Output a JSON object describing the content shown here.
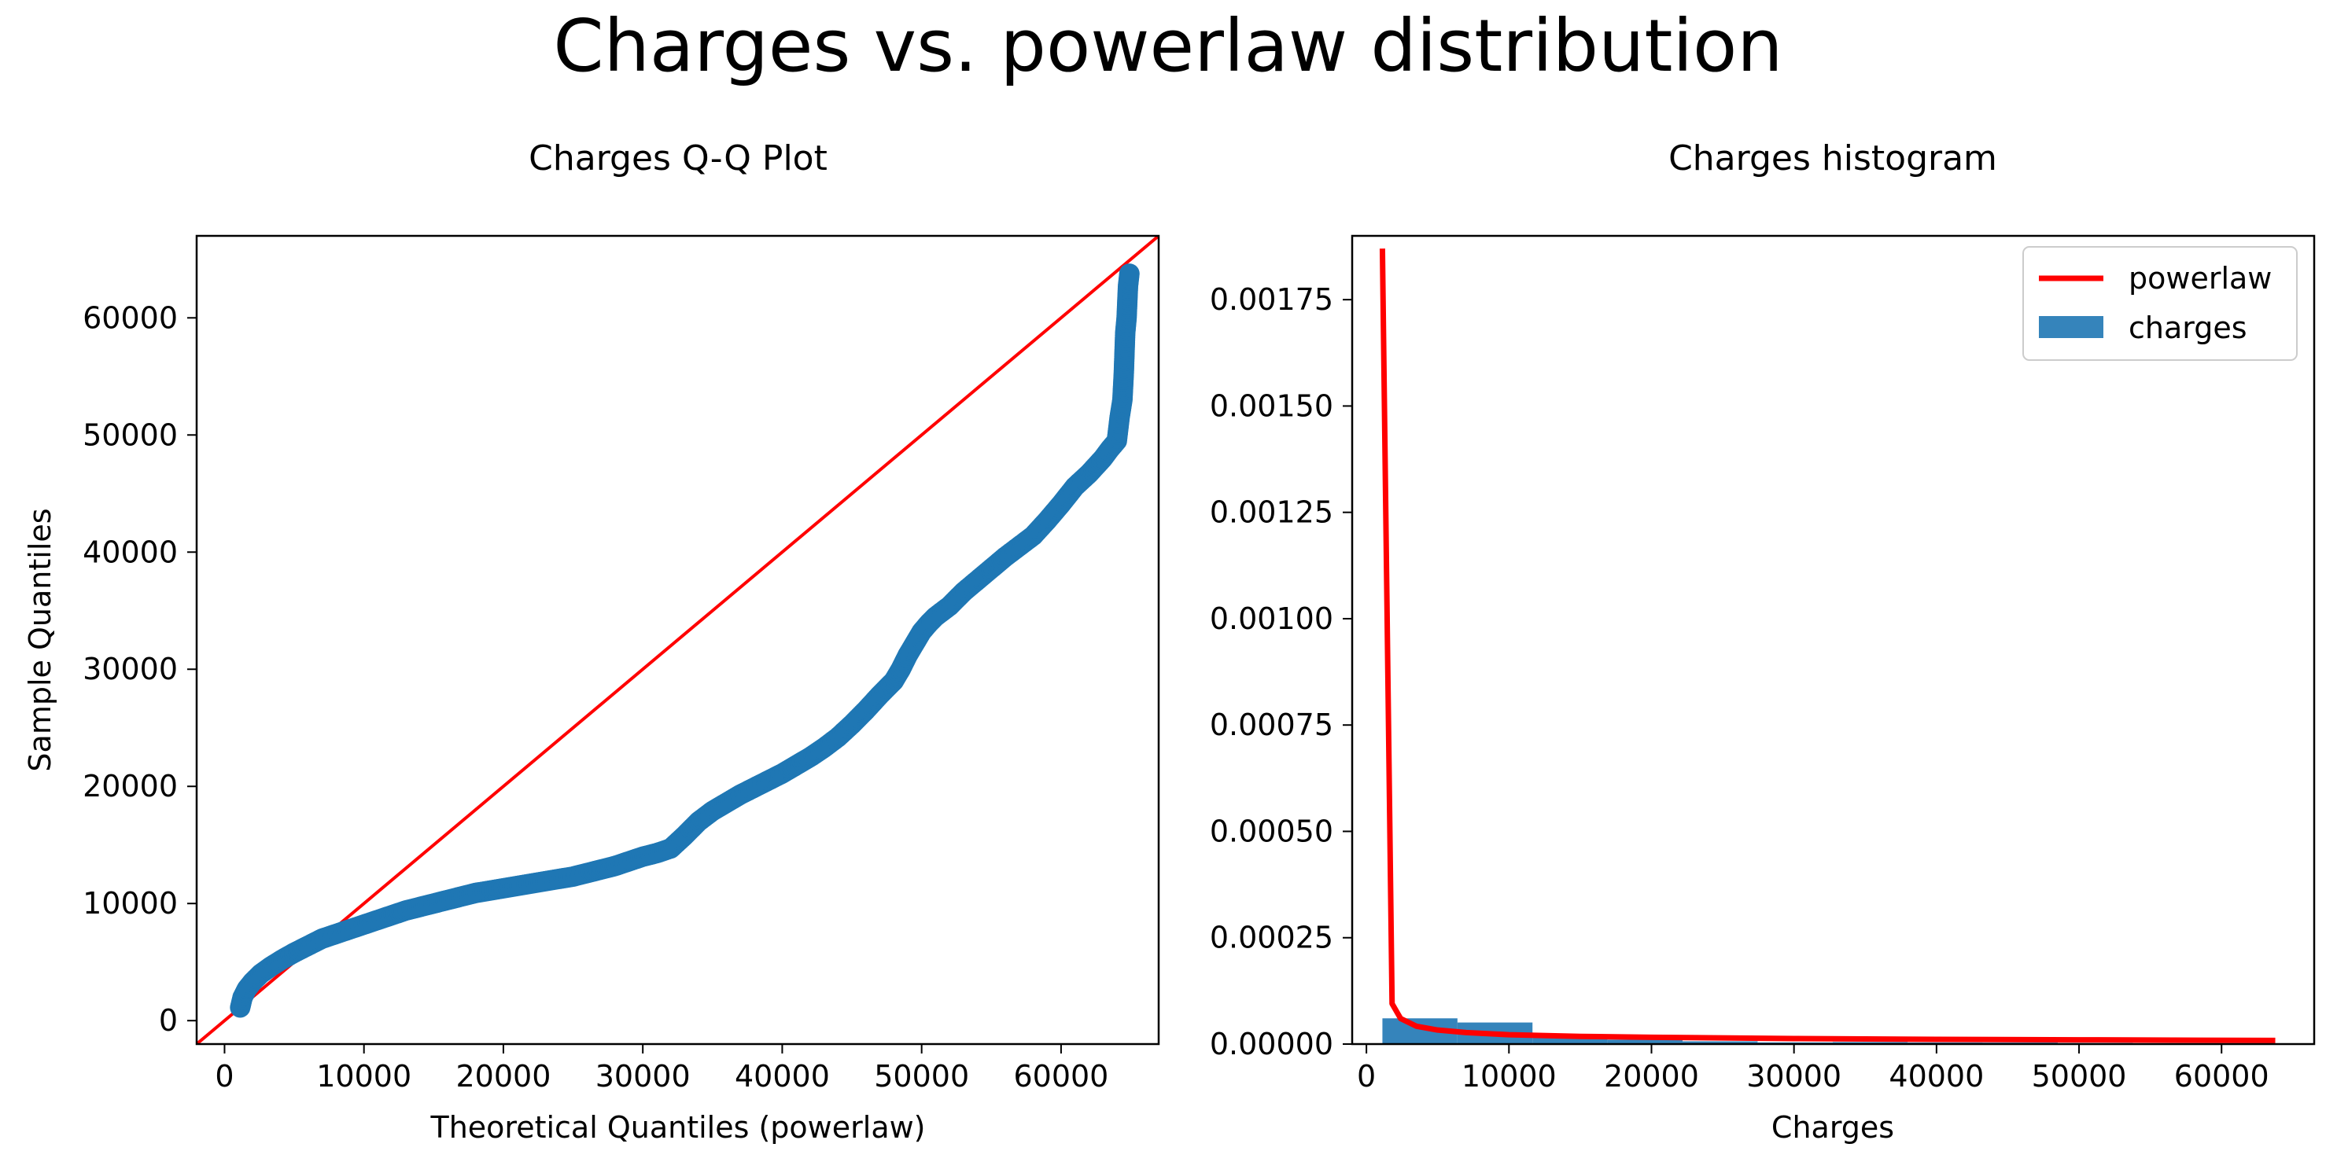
{
  "figure": {
    "suptitle": "Charges vs. powerlaw distribution"
  },
  "chart_data": [
    {
      "type": "scatter",
      "title": "Charges Q-Q Plot",
      "xlabel": "Theoretical Quantiles (powerlaw)",
      "ylabel": "Sample Quantiles",
      "xlim": [
        -2000,
        67000
      ],
      "ylim": [
        -2000,
        67000
      ],
      "xticks": [
        0,
        10000,
        20000,
        30000,
        40000,
        50000,
        60000
      ],
      "yticks": [
        0,
        10000,
        20000,
        30000,
        40000,
        50000,
        60000
      ],
      "grid": false,
      "colors": {
        "points": "#1f77b4",
        "reference_line": "#ff0000"
      },
      "reference_line": [
        [
          -2000,
          -2000
        ],
        [
          67000,
          67000
        ]
      ],
      "points_x": [
        1122,
        1300,
        1600,
        2000,
        2600,
        3300,
        4100,
        5000,
        6000,
        7000,
        8000,
        9000,
        10000,
        11000,
        12000,
        13000,
        14000,
        15000,
        16000,
        17000,
        18000,
        19000,
        20000,
        21000,
        22000,
        23000,
        24000,
        25000,
        26000,
        27000,
        28000,
        29000,
        30000,
        31000,
        32000,
        33000,
        34000,
        35000,
        36000,
        37000,
        38000,
        39000,
        40000,
        41000,
        42000,
        43000,
        44000,
        45000,
        46000,
        47000,
        48000,
        48500,
        49000,
        49500,
        50000,
        50500,
        51000,
        52000,
        53000,
        54000,
        55000,
        56000,
        57000,
        58000,
        59000,
        60000,
        61000,
        62000,
        63000,
        63500,
        64000,
        64200,
        64400,
        64500,
        64600,
        64700,
        64800,
        64900
      ],
      "points_y": [
        1122,
        2000,
        2700,
        3300,
        4000,
        4600,
        5200,
        5800,
        6400,
        7000,
        7400,
        7800,
        8200,
        8600,
        9000,
        9400,
        9700,
        10000,
        10300,
        10600,
        10900,
        11100,
        11300,
        11500,
        11700,
        11900,
        12100,
        12300,
        12600,
        12900,
        13200,
        13600,
        14000,
        14300,
        14700,
        15800,
        17000,
        17900,
        18600,
        19300,
        19900,
        20500,
        21100,
        21800,
        22500,
        23300,
        24200,
        25300,
        26500,
        27800,
        29000,
        30000,
        31200,
        32200,
        33200,
        33900,
        34500,
        35400,
        36600,
        37600,
        38600,
        39600,
        40500,
        41400,
        42700,
        44100,
        45600,
        46700,
        48000,
        48800,
        49500,
        51500,
        53000,
        55300,
        58700,
        60000,
        62700,
        63770
      ]
    },
    {
      "type": "bar",
      "title": "Charges histogram",
      "xlabel": "Charges",
      "ylabel": "",
      "xlim": [
        -1000,
        66500
      ],
      "ylim": [
        0,
        0.0019
      ],
      "xticks": [
        0,
        10000,
        20000,
        30000,
        40000,
        50000,
        60000
      ],
      "yticks": [
        "0.00000",
        "0.00025",
        "0.00050",
        "0.00075",
        "0.00100",
        "0.00125",
        "0.00150",
        "0.00175"
      ],
      "grid": false,
      "legend_position": "top-right",
      "series": [
        {
          "name": "powerlaw",
          "kind": "line",
          "color": "#ff0000",
          "x": [
            1122,
            1800,
            2400,
            3500,
            5000,
            7000,
            10000,
            15000,
            20000,
            30000,
            40000,
            50000,
            63770
          ],
          "y": [
            0.00187,
            9.5e-05,
            6e-05,
            4.2e-05,
            3.3e-05,
            2.7e-05,
            2.2e-05,
            1.8e-05,
            1.6e-05,
            1.3e-05,
            1.1e-05,
            1e-05,
            8.5e-06
          ]
        },
        {
          "name": "charges",
          "kind": "histogram",
          "color": "#1f77b4",
          "bin_edges": [
            1122,
            6387,
            11652,
            16917,
            22182,
            27447,
            32712,
            37977,
            43242,
            48507,
            53772,
            59037,
            64302
          ],
          "values": [
            6.05e-05,
            5.07e-05,
            2.05e-05,
            1.05e-05,
            6.5e-06,
            4e-06,
            4.8e-06,
            3.8e-06,
            3.5e-06,
            2.5e-06,
            5e-07,
            4e-07
          ]
        }
      ]
    }
  ]
}
